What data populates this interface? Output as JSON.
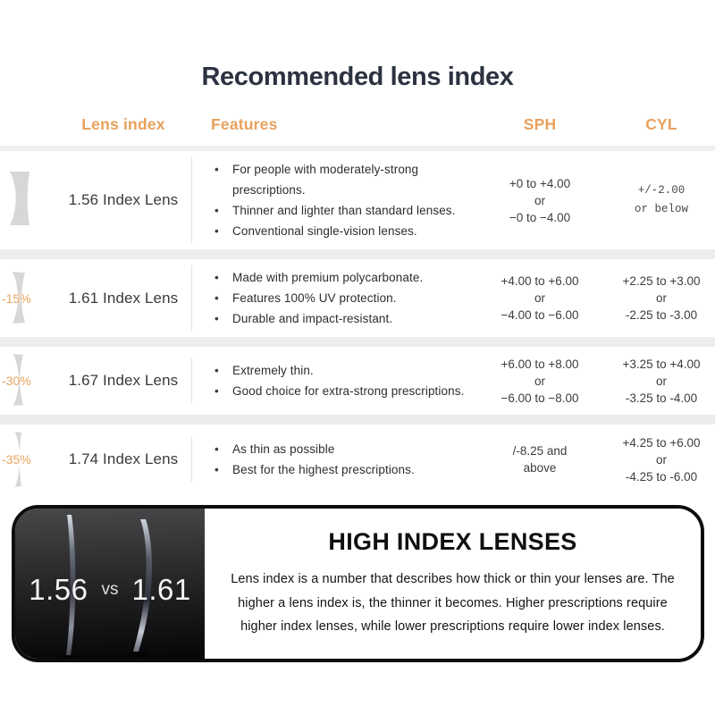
{
  "title": "Recommended lens index",
  "accent_color": "#e7a15e",
  "table": {
    "headers": {
      "lens_index": "Lens index",
      "features": "Features",
      "sph": "SPH",
      "cyl": "CYL"
    },
    "rows": [
      {
        "discount": "",
        "name": "1.56 Index Lens",
        "features": [
          "For people with moderately-strong prescriptions.",
          "Thinner and lighter than standard lenses.",
          "Conventional single-vision lenses."
        ],
        "sph": [
          "+0 to +4.00",
          "or",
          "−0 to −4.00"
        ],
        "cyl": [
          "+/-2.00",
          "or below"
        ],
        "cyl_mono": true
      },
      {
        "discount": "-15%",
        "name": "1.61 Index Lens",
        "features": [
          "Made with premium polycarbonate.",
          "Features 100% UV protection.",
          "Durable and impact-resistant."
        ],
        "sph": [
          "+4.00 to +6.00",
          "or",
          "−4.00 to −6.00"
        ],
        "cyl": [
          "+2.25 to +3.00",
          "or",
          "-2.25 to -3.00"
        ],
        "cyl_mono": false
      },
      {
        "discount": "-30%",
        "name": "1.67 Index Lens",
        "features": [
          "Extremely thin.",
          "Good choice for extra-strong prescriptions."
        ],
        "sph": [
          "+6.00 to +8.00",
          "or",
          "−6.00 to −8.00"
        ],
        "cyl": [
          "+3.25 to +4.00",
          "or",
          "-3.25 to -4.00"
        ],
        "cyl_mono": false
      },
      {
        "discount": "-35%",
        "name": "1.74 Index Lens",
        "features": [
          "As thin as possible",
          "Best for the highest prescriptions."
        ],
        "sph": [
          "/-8.25 and",
          "above"
        ],
        "cyl": [
          "+4.25 to +6.00",
          "or",
          "-4.25 to -6.00"
        ],
        "cyl_mono": false
      }
    ]
  },
  "comparison": {
    "left_label": "1.56",
    "vs_label": "vs",
    "right_label": "1.61",
    "heading": "HIGH INDEX LENSES",
    "description": "Lens index is a number that describes how thick or thin your lenses are. The higher a lens index is, the thinner it becomes. Higher prescriptions require higher index lenses, while lower prescriptions require lower index lenses."
  }
}
